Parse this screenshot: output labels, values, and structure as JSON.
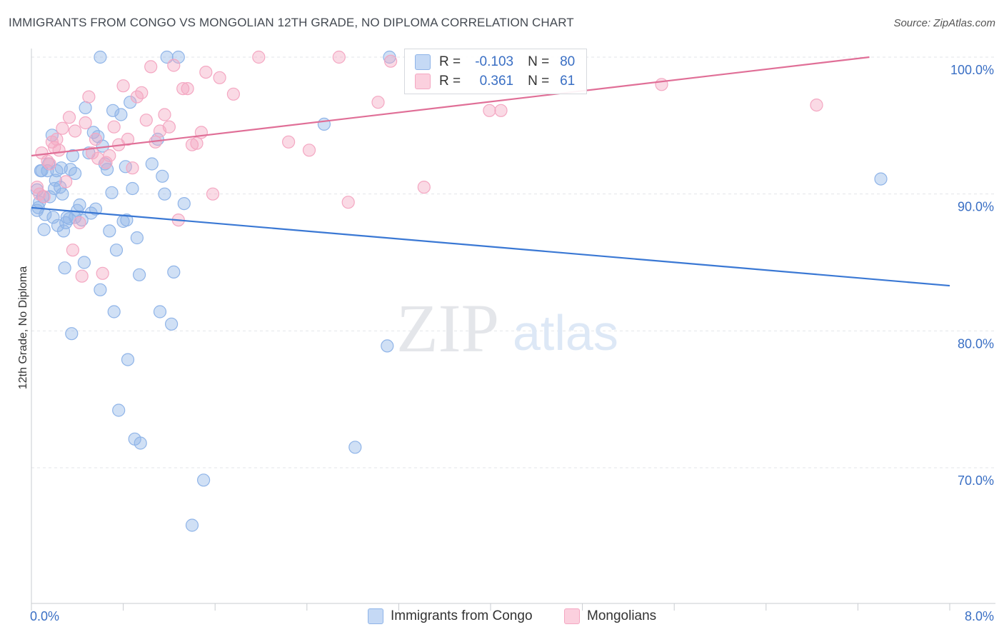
{
  "title": "IMMIGRANTS FROM CONGO VS MONGOLIAN 12TH GRADE, NO DIPLOMA CORRELATION CHART",
  "source": "Source: ZipAtlas.com",
  "legend": {
    "r_label": "R =",
    "n_label": "N =",
    "rows": [
      {
        "r": "-0.103",
        "n": "80"
      },
      {
        "r": "0.361",
        "n": "61"
      }
    ]
  },
  "watermark": {
    "zip": "ZIP",
    "atlas": "atlas"
  },
  "chart_data": {
    "type": "scatter",
    "title": "IMMIGRANTS FROM CONGO VS MONGOLIAN 12TH GRADE, NO DIPLOMA CORRELATION CHART",
    "xlabel": "",
    "ylabel": "12th Grade, No Diploma",
    "xlim": [
      0,
      8
    ],
    "ylim": [
      62,
      101.5
    ],
    "x_ticks": [
      {
        "value": 0,
        "label": "0.0%"
      },
      {
        "value": 8,
        "label": "8.0%"
      }
    ],
    "y_ticks": [
      {
        "value": 100,
        "label": "100.0%"
      },
      {
        "value": 90,
        "label": "90.0%"
      },
      {
        "value": 80,
        "label": "80.0%"
      },
      {
        "value": 70,
        "label": "70.0%"
      }
    ],
    "grid": true,
    "legend_position": "bottom",
    "series": [
      {
        "name": "Immigrants from Congo",
        "color": "#8fb4e8",
        "line_color": "#3a78d4",
        "trend": [
          [
            0,
            89.0
          ],
          [
            8,
            83.3
          ]
        ],
        "points": [
          [
            0.05,
            90.3
          ],
          [
            0.06,
            89.0
          ],
          [
            0.05,
            88.8
          ],
          [
            0.07,
            89.4
          ],
          [
            0.08,
            91.7
          ],
          [
            0.1,
            89.8
          ],
          [
            0.11,
            87.4
          ],
          [
            0.12,
            88.5
          ],
          [
            0.14,
            91.7
          ],
          [
            0.15,
            92.2
          ],
          [
            0.16,
            89.8
          ],
          [
            0.18,
            94.3
          ],
          [
            0.19,
            88.3
          ],
          [
            0.2,
            90.4
          ],
          [
            0.21,
            91.0
          ],
          [
            0.22,
            91.7
          ],
          [
            0.23,
            87.7
          ],
          [
            0.25,
            90.5
          ],
          [
            0.26,
            91.9
          ],
          [
            0.27,
            90.0
          ],
          [
            0.28,
            87.3
          ],
          [
            0.29,
            84.6
          ],
          [
            0.31,
            88.3
          ],
          [
            0.33,
            88.2
          ],
          [
            0.34,
            91.8
          ],
          [
            0.35,
            79.8
          ],
          [
            0.36,
            92.8
          ],
          [
            0.38,
            91.5
          ],
          [
            0.4,
            88.8
          ],
          [
            0.42,
            89.2
          ],
          [
            0.44,
            88.1
          ],
          [
            0.46,
            85.0
          ],
          [
            0.5,
            93.0
          ],
          [
            0.52,
            88.6
          ],
          [
            0.54,
            94.5
          ],
          [
            0.56,
            88.9
          ],
          [
            0.58,
            94.2
          ],
          [
            0.6,
            83.0
          ],
          [
            0.62,
            93.5
          ],
          [
            0.64,
            92.2
          ],
          [
            0.66,
            91.8
          ],
          [
            0.68,
            87.3
          ],
          [
            0.7,
            90.1
          ],
          [
            0.72,
            81.4
          ],
          [
            0.74,
            85.9
          ],
          [
            0.76,
            74.2
          ],
          [
            0.78,
            95.8
          ],
          [
            0.8,
            88.0
          ],
          [
            0.82,
            92.0
          ],
          [
            0.84,
            77.9
          ],
          [
            0.86,
            96.7
          ],
          [
            0.88,
            90.4
          ],
          [
            0.9,
            72.1
          ],
          [
            0.92,
            86.8
          ],
          [
            0.94,
            84.1
          ],
          [
            0.95,
            71.8
          ],
          [
            1.05,
            92.2
          ],
          [
            1.1,
            94.0
          ],
          [
            1.12,
            81.4
          ],
          [
            1.14,
            91.3
          ],
          [
            1.16,
            90.0
          ],
          [
            1.18,
            100.0
          ],
          [
            1.22,
            80.5
          ],
          [
            1.24,
            84.3
          ],
          [
            1.28,
            100.0
          ],
          [
            1.33,
            89.3
          ],
          [
            1.5,
            69.1
          ],
          [
            1.4,
            65.8
          ],
          [
            0.6,
            100.0
          ],
          [
            0.47,
            96.3
          ],
          [
            0.71,
            96.1
          ],
          [
            0.83,
            88.1
          ],
          [
            2.55,
            95.1
          ],
          [
            2.82,
            71.5
          ],
          [
            3.1,
            78.9
          ],
          [
            3.12,
            100.0
          ],
          [
            7.4,
            91.1
          ],
          [
            0.3,
            87.9
          ],
          [
            0.38,
            88.3
          ],
          [
            0.09,
            91.7
          ]
        ]
      },
      {
        "name": "Mongolians",
        "color": "#f4a7c2",
        "line_color": "#e06f97",
        "trend": [
          [
            0,
            92.8
          ],
          [
            7.3,
            100.0
          ]
        ],
        "points": [
          [
            0.05,
            90.5
          ],
          [
            0.07,
            90.0
          ],
          [
            0.09,
            93.0
          ],
          [
            0.11,
            89.8
          ],
          [
            0.14,
            92.4
          ],
          [
            0.16,
            92.2
          ],
          [
            0.18,
            93.8
          ],
          [
            0.2,
            93.4
          ],
          [
            0.22,
            94.0
          ],
          [
            0.24,
            93.2
          ],
          [
            0.27,
            94.8
          ],
          [
            0.3,
            90.9
          ],
          [
            0.33,
            95.6
          ],
          [
            0.36,
            85.9
          ],
          [
            0.38,
            94.6
          ],
          [
            0.42,
            87.9
          ],
          [
            0.44,
            84.0
          ],
          [
            0.47,
            95.2
          ],
          [
            0.5,
            97.1
          ],
          [
            0.53,
            93.0
          ],
          [
            0.56,
            94.0
          ],
          [
            0.58,
            92.6
          ],
          [
            0.62,
            84.2
          ],
          [
            0.65,
            92.3
          ],
          [
            0.68,
            92.8
          ],
          [
            0.72,
            94.9
          ],
          [
            0.76,
            93.6
          ],
          [
            0.8,
            97.9
          ],
          [
            0.84,
            94.0
          ],
          [
            0.88,
            91.9
          ],
          [
            0.92,
            97.1
          ],
          [
            0.96,
            97.4
          ],
          [
            1.0,
            95.4
          ],
          [
            1.04,
            99.3
          ],
          [
            1.08,
            93.8
          ],
          [
            1.12,
            94.6
          ],
          [
            1.16,
            95.8
          ],
          [
            1.2,
            94.9
          ],
          [
            1.24,
            99.4
          ],
          [
            1.28,
            88.1
          ],
          [
            1.32,
            97.7
          ],
          [
            1.36,
            97.7
          ],
          [
            1.4,
            93.6
          ],
          [
            1.44,
            93.7
          ],
          [
            1.48,
            94.5
          ],
          [
            1.52,
            98.9
          ],
          [
            1.58,
            90.0
          ],
          [
            1.64,
            98.5
          ],
          [
            1.76,
            97.3
          ],
          [
            1.98,
            100.0
          ],
          [
            2.24,
            93.8
          ],
          [
            2.42,
            93.2
          ],
          [
            2.68,
            100.0
          ],
          [
            2.76,
            89.4
          ],
          [
            3.02,
            96.7
          ],
          [
            3.13,
            99.7
          ],
          [
            3.42,
            90.5
          ],
          [
            3.99,
            96.1
          ],
          [
            4.09,
            96.1
          ],
          [
            5.49,
            98.0
          ],
          [
            6.84,
            96.5
          ]
        ]
      }
    ]
  },
  "bottom_legend": [
    "Immigrants from Congo",
    "Mongolians"
  ]
}
